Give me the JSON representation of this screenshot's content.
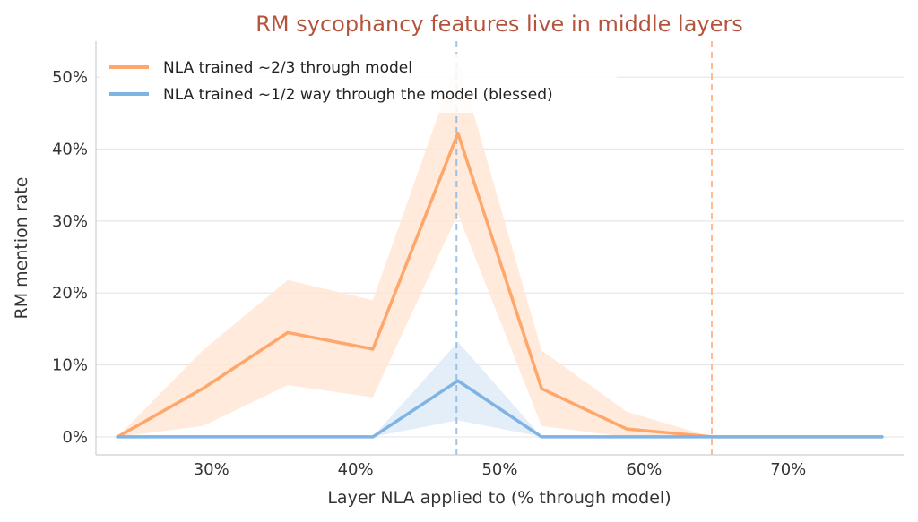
{
  "chart_data": {
    "type": "line",
    "title": "RM sycophancy features live in middle layers",
    "xlabel": "Layer NLA applied to (% through model)",
    "ylabel": "RM mention rate",
    "xlim": [
      22,
      78
    ],
    "ylim": [
      -2.5,
      55
    ],
    "xticks": [
      30,
      40,
      50,
      60,
      70
    ],
    "xtick_labels": [
      "30%",
      "40%",
      "50%",
      "60%",
      "70%"
    ],
    "yticks": [
      0,
      10,
      20,
      30,
      40,
      50
    ],
    "ytick_labels": [
      "0%",
      "10%",
      "20%",
      "30%",
      "40%",
      "50%"
    ],
    "grid": "horizontal",
    "legend_position": "top-left",
    "vlines": [
      {
        "x": 47,
        "series": 1
      },
      {
        "x": 64.7,
        "series": 0
      }
    ],
    "series": [
      {
        "name": "NLA trained ~2/3 through model",
        "color": "#ffa66b",
        "band_color": "#ffe6d6",
        "x": [
          23.5,
          29.4,
          35.3,
          41.2,
          47.1,
          52.9,
          58.8,
          64.7,
          70.6,
          76.5
        ],
        "values": [
          0,
          6.7,
          14.5,
          12.2,
          42.2,
          6.7,
          1.1,
          0,
          0,
          0
        ],
        "lower": [
          0,
          1.5,
          7.2,
          5.5,
          31.0,
          1.5,
          0,
          0,
          0,
          0
        ],
        "upper": [
          0,
          12.0,
          21.8,
          19.0,
          52.5,
          12.0,
          3.5,
          0,
          0,
          0
        ]
      },
      {
        "name": "NLA trained ~1/2 way through the model (blessed)",
        "color": "#7fb3e3",
        "band_color": "#deebf7",
        "x": [
          23.5,
          29.4,
          35.3,
          41.2,
          47.1,
          52.9,
          58.8,
          64.7,
          70.6,
          76.5
        ],
        "values": [
          0,
          0,
          0,
          0,
          7.8,
          0,
          0,
          0,
          0,
          0
        ],
        "lower": [
          0,
          0,
          0,
          0,
          2.3,
          0,
          0,
          0,
          0,
          0
        ],
        "upper": [
          0,
          0,
          0,
          0,
          13.2,
          0,
          0,
          0,
          0,
          0
        ]
      }
    ]
  }
}
